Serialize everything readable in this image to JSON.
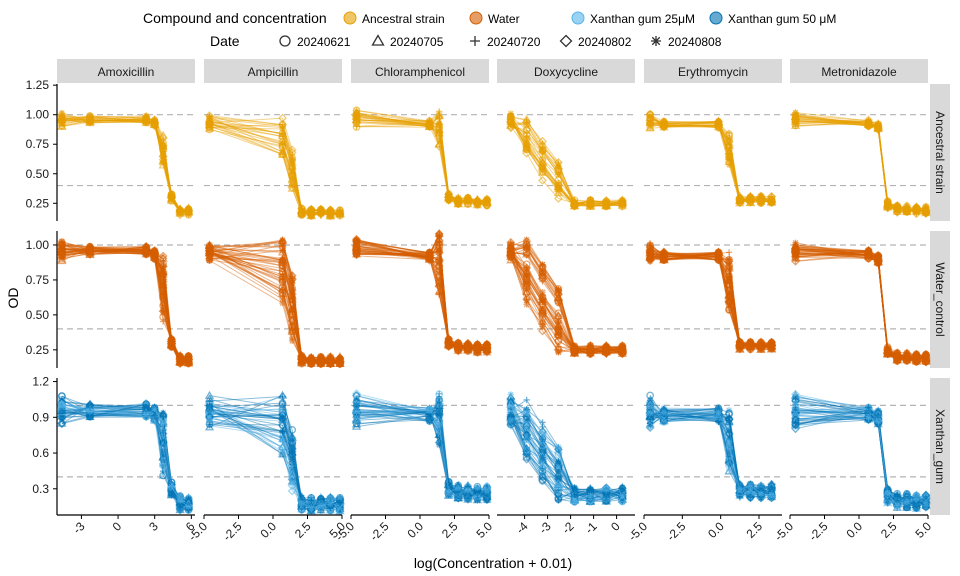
{
  "legend": {
    "compound_title": "Compound and concentration",
    "compound_items": [
      {
        "label": "Ancestral strain",
        "color": "#E69F00"
      },
      {
        "label": "Water",
        "color": "#D55E00"
      },
      {
        "label": "Xanthan gum 25μM",
        "color": "#56B4E9"
      },
      {
        "label": "Xanthan gum 50 μM",
        "color": "#0072B2"
      }
    ],
    "date_title": "Date",
    "date_items": [
      {
        "label": "20240621",
        "shape": "circle"
      },
      {
        "label": "20240705",
        "shape": "triangle"
      },
      {
        "label": "20240720",
        "shape": "plus"
      },
      {
        "label": "20240802",
        "shape": "diamond"
      },
      {
        "label": "20240808",
        "shape": "asterisk"
      }
    ]
  },
  "chart_data": {
    "type": "line",
    "xlabel": "log(Concentration + 0.01)",
    "ylabel": "OD",
    "reference_lines_y": [
      1.0,
      0.4
    ],
    "columns": [
      {
        "name": "Amoxicillin",
        "xlim": [
          -5,
          6.3
        ],
        "xticks": [
          -3,
          0,
          3,
          6
        ],
        "x": [
          -4.6,
          -2.3,
          2.3,
          2.99,
          3.69,
          4.38,
          5.08,
          5.77
        ],
        "profile": [
          0.96,
          0.96,
          0.96,
          0.93,
          0.68,
          0.3,
          0.18,
          0.18
        ]
      },
      {
        "name": "Ampicillin",
        "xlim": [
          -5,
          5
        ],
        "xticks": [
          -5.0,
          -2.5,
          0.0,
          2.5,
          5.0
        ],
        "x": [
          -4.6,
          0.69,
          1.39,
          2.08,
          2.77,
          3.47,
          4.16,
          4.85
        ],
        "profile": [
          0.95,
          0.82,
          0.55,
          0.18,
          0.17,
          0.17,
          0.17,
          0.17
        ]
      },
      {
        "name": "Chloramphenicol",
        "xlim": [
          -5,
          5
        ],
        "xticks": [
          -5.0,
          -2.5,
          0.0,
          2.5,
          5.0
        ],
        "x": [
          -4.6,
          0.69,
          1.39,
          2.08,
          2.77,
          3.47,
          4.16,
          4.85
        ],
        "profile": [
          0.97,
          0.92,
          0.88,
          0.3,
          0.27,
          0.27,
          0.26,
          0.26
        ]
      },
      {
        "name": "Doxycycline",
        "xlim": [
          -5.2,
          0.8
        ],
        "xticks": [
          -4,
          -3,
          -2,
          -1,
          0
        ],
        "x": [
          -4.6,
          -3.91,
          -3.22,
          -2.53,
          -1.83,
          -1.14,
          -0.45,
          0.25
        ],
        "profile": [
          0.95,
          0.8,
          0.62,
          0.45,
          0.25,
          0.25,
          0.25,
          0.25
        ]
      },
      {
        "name": "Erythromycin",
        "xlim": [
          -5,
          4
        ],
        "xticks": [
          -5.0,
          -2.5,
          0.0,
          2.5
        ],
        "x": [
          -4.6,
          -3.7,
          -0.14,
          0.55,
          1.25,
          1.94,
          2.63,
          3.32
        ],
        "profile": [
          0.95,
          0.92,
          0.92,
          0.7,
          0.28,
          0.28,
          0.28,
          0.28
        ]
      },
      {
        "name": "Metronidazole",
        "xlim": [
          -5,
          5
        ],
        "xticks": [
          -5.0,
          -2.5,
          0.0,
          2.5,
          5.0
        ],
        "x": [
          -4.6,
          0.69,
          1.39,
          2.08,
          2.77,
          3.47,
          4.16,
          4.85
        ],
        "profile": [
          0.95,
          0.93,
          0.9,
          0.24,
          0.2,
          0.2,
          0.19,
          0.19
        ]
      }
    ],
    "rows": [
      {
        "name": "Ancestral strain",
        "ylim": [
          0.1,
          1.26
        ],
        "yticks": [
          "0.25",
          "0.50",
          "0.75",
          "1.00",
          "1.25"
        ],
        "ytick_values": [
          0.25,
          0.5,
          0.75,
          1.0,
          1.25
        ],
        "color": "#E69F00"
      },
      {
        "name": "Water_control",
        "ylim": [
          0.12,
          1.1
        ],
        "yticks": [
          "0.25",
          "0.50",
          "0.75",
          "1.00"
        ],
        "ytick_values": [
          0.25,
          0.5,
          0.75,
          1.0
        ],
        "color": "#D55E00"
      },
      {
        "name": "Xanthan_gum",
        "ylim": [
          0.08,
          1.23
        ],
        "yticks": [
          "0.3",
          "0.6",
          "0.9",
          "1.2"
        ],
        "ytick_values": [
          0.3,
          0.6,
          0.9,
          1.2
        ],
        "color": "#0072B2",
        "color_light": "#56B4E9"
      }
    ]
  }
}
